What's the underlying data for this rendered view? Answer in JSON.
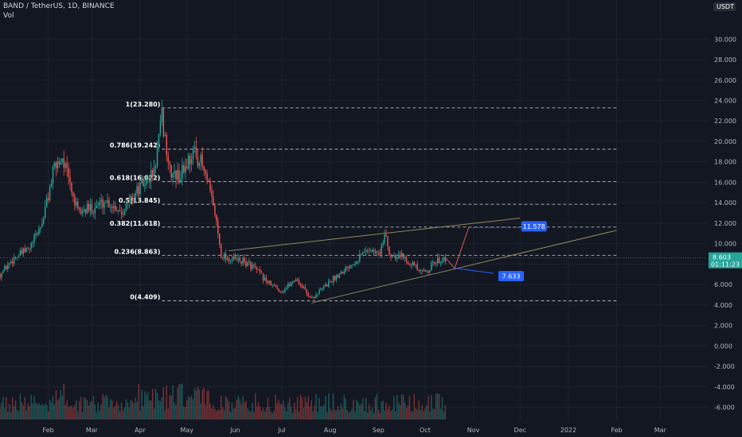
{
  "header": {
    "symbol": "BAND / TetherUS, 1D, BINANCE",
    "indicator": "Vol"
  },
  "currency_badge": "USDT",
  "price_tag": {
    "price": "8.603",
    "countdown": "01:11:23",
    "color": "#26a69a"
  },
  "colors": {
    "background": "#131722",
    "grid": "#1e222d",
    "up": "#26a69a",
    "down": "#ef5350",
    "fib_line": "#b2b5be",
    "trend_line": "#8d8a5c",
    "projection_up": "#ef5350",
    "projection_down": "#2962ff",
    "target_tag": "#2962ff"
  },
  "chart_data": {
    "type": "candlestick",
    "y_ticks": [
      "30.000",
      "28.000",
      "26.000",
      "24.000",
      "22.000",
      "20.000",
      "18.000",
      "16.000",
      "14.000",
      "12.000",
      "10.000",
      "8.000",
      "6.000",
      "4.000",
      "2.000",
      "0.000",
      "-2.000",
      "-4.000",
      "-6.000"
    ],
    "ylim": [
      -7.2,
      31.5
    ],
    "x_labels": [
      "Feb",
      "Mar",
      "Apr",
      "May",
      "Jun",
      "Jul",
      "Aug",
      "Sep",
      "Oct",
      "Nov",
      "Dec",
      "2022",
      "Feb",
      "Mar"
    ],
    "x_ticks": [
      "2021-02-01",
      "2021-03-01",
      "2021-04-01",
      "2021-05-01",
      "2021-06-01",
      "2021-07-01",
      "2021-08-01",
      "2021-09-01",
      "2021-10-01",
      "2021-11-01",
      "2021-12-01",
      "2022-01-01",
      "2022-02-01",
      "2022-03-01"
    ],
    "fib_levels": [
      {
        "label": "1(23.280)",
        "value": 23.28
      },
      {
        "label": "0.786(19.242)",
        "value": 19.242
      },
      {
        "label": "0.618(16.072)",
        "value": 16.072
      },
      {
        "label": "0.5(13.845)",
        "value": 13.845
      },
      {
        "label": "0.382(11.618)",
        "value": 11.618
      },
      {
        "label": "0.236(8.863)",
        "value": 8.863
      },
      {
        "label": "0(4.409)",
        "value": 4.409
      }
    ],
    "trend_lines": [
      {
        "from": [
          "2021-05-28",
          9.3
        ],
        "to": [
          "2021-12-01",
          12.5
        ]
      },
      {
        "from": [
          "2021-07-20",
          4.2
        ],
        "to": [
          "2022-02-01",
          11.3
        ]
      }
    ],
    "projections": [
      {
        "direction": "up",
        "path": [
          [
            "2021-10-14",
            8.6
          ],
          [
            "2021-10-20",
            7.6
          ],
          [
            "2021-10-29",
            11.578
          ]
        ],
        "target": "11.578"
      },
      {
        "direction": "down",
        "path": [
          [
            "2021-10-20",
            7.6
          ],
          [
            "2021-11-14",
            7.1
          ]
        ],
        "target": "7.633"
      }
    ],
    "ohlc_anchors": [
      [
        "2021-01-01",
        7.0
      ],
      [
        "2021-01-10",
        8.6
      ],
      [
        "2021-01-20",
        9.5
      ],
      [
        "2021-01-28",
        12.0
      ],
      [
        "2021-02-05",
        17.5
      ],
      [
        "2021-02-10",
        18.5
      ],
      [
        "2021-02-20",
        13.0
      ],
      [
        "2021-03-01",
        13.5
      ],
      [
        "2021-03-10",
        14.2
      ],
      [
        "2021-03-20",
        13.2
      ],
      [
        "2021-04-01",
        15.5
      ],
      [
        "2021-04-10",
        17.0
      ],
      [
        "2021-04-15",
        22.3
      ],
      [
        "2021-04-20",
        17.0
      ],
      [
        "2021-04-26",
        16.5
      ],
      [
        "2021-05-05",
        19.0
      ],
      [
        "2021-05-10",
        18.0
      ],
      [
        "2021-05-15",
        15.5
      ],
      [
        "2021-05-19",
        13.0
      ],
      [
        "2021-05-23",
        9.0
      ],
      [
        "2021-05-28",
        8.5
      ],
      [
        "2021-06-05",
        8.3
      ],
      [
        "2021-06-12",
        7.8
      ],
      [
        "2021-06-22",
        6.2
      ],
      [
        "2021-07-01",
        5.3
      ],
      [
        "2021-07-10",
        6.6
      ],
      [
        "2021-07-14",
        5.8
      ],
      [
        "2021-07-20",
        4.6
      ],
      [
        "2021-08-01",
        6.3
      ],
      [
        "2021-08-10",
        7.5
      ],
      [
        "2021-08-18",
        8.5
      ],
      [
        "2021-08-25",
        9.5
      ],
      [
        "2021-09-01",
        9.0
      ],
      [
        "2021-09-06",
        10.8
      ],
      [
        "2021-09-08",
        8.9
      ],
      [
        "2021-09-15",
        8.9
      ],
      [
        "2021-09-22",
        8.2
      ],
      [
        "2021-09-28",
        7.1
      ],
      [
        "2021-10-03",
        7.5
      ],
      [
        "2021-10-08",
        8.3
      ],
      [
        "2021-10-14",
        8.6
      ]
    ],
    "volume_ylim": [
      0,
      8
    ]
  }
}
